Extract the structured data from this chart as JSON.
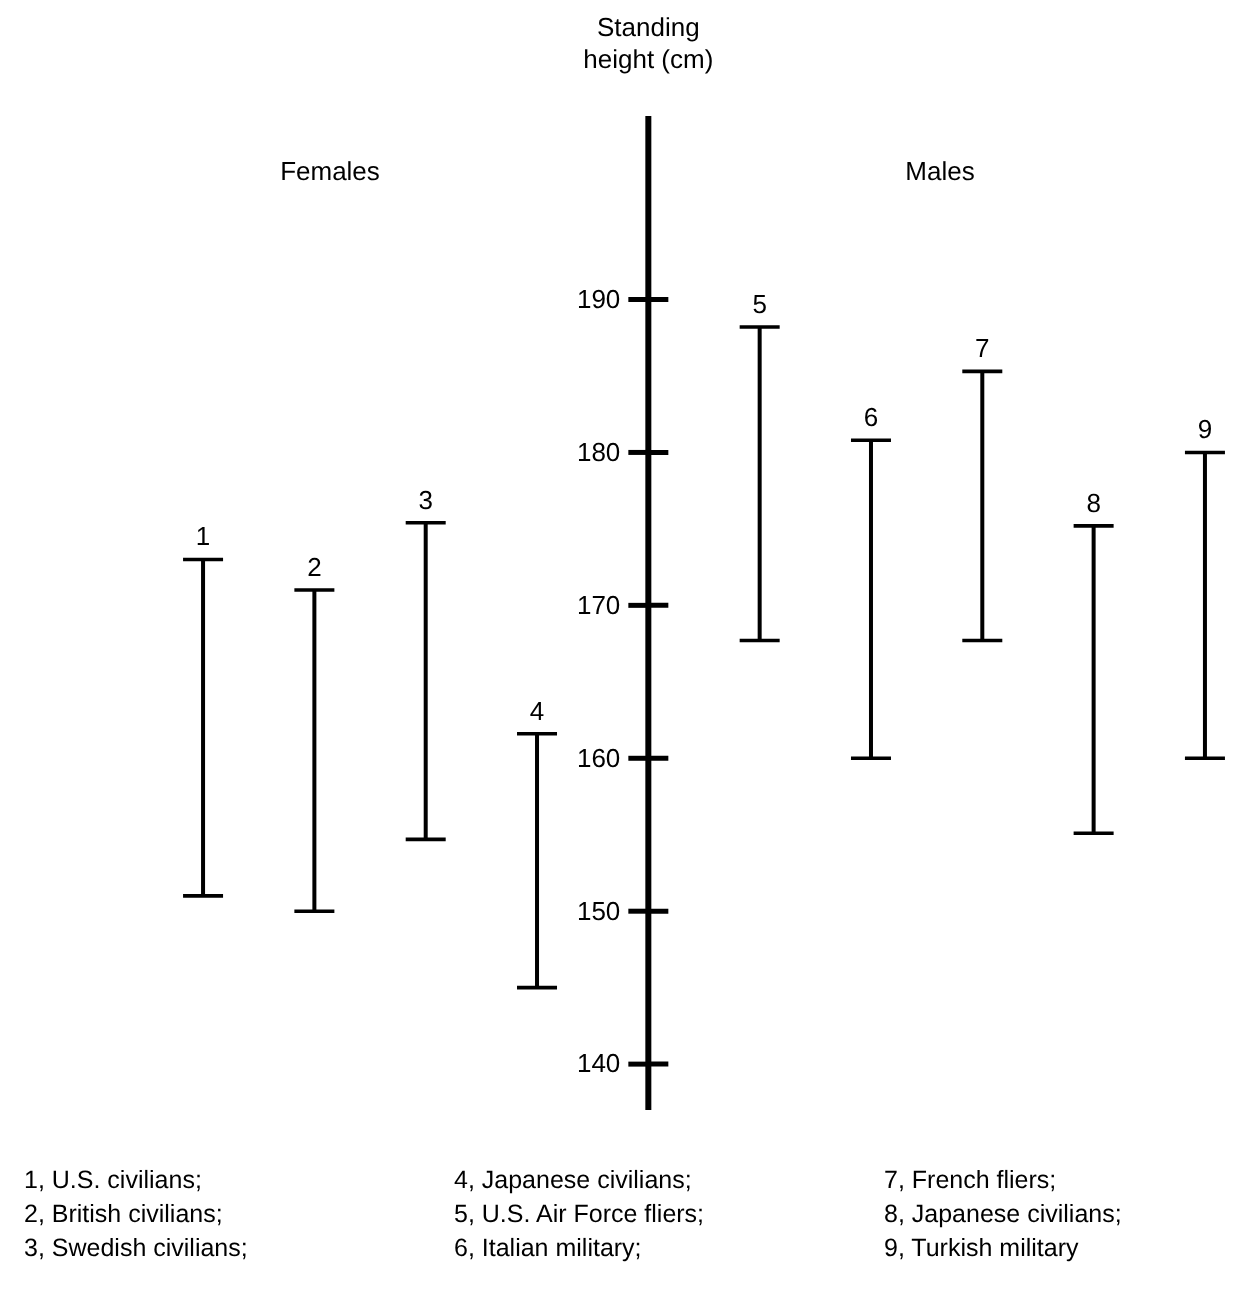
{
  "chart_data": {
    "type": "bar",
    "ylabel": "Standing height (cm)",
    "categories": [
      "1",
      "2",
      "3",
      "4",
      null,
      "5",
      "6",
      "7",
      "8",
      "9"
    ],
    "base": [
      151,
      150,
      154.7,
      145,
      null,
      167.7,
      160,
      167.7,
      155.1,
      160
    ],
    "values": [
      22,
      21,
      20.7,
      16.6,
      null,
      20.5,
      20.8,
      17.6,
      20.1,
      20
    ],
    "color": "#000000",
    "ylim": [
      137,
      202
    ],
    "yticks": [
      140,
      150,
      160,
      170,
      180,
      190
    ],
    "annotations": [
      "Females",
      "Males",
      "1, U.S. civilians;",
      "2, British civilians;",
      "3, Swedish civilians;",
      "4, Japanese civilians;",
      "5, U.S. Air Force fliers;",
      "6, Italian military;",
      "7, French fliers;",
      "8, Japanese civilians;",
      "9, Turkish military"
    ]
  }
}
